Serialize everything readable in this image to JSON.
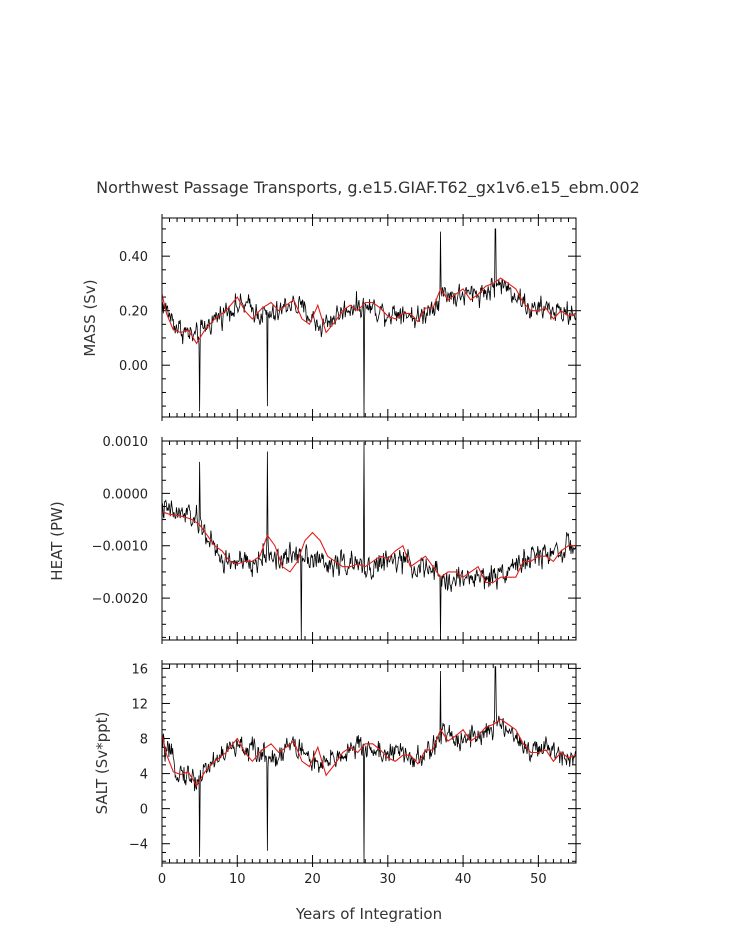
{
  "figure": {
    "title": "Northwest Passage Transports, g.e15.GIAF.T62_gx1v6.e15_ebm.002",
    "xlabel": "Years of Integration"
  },
  "colors": {
    "raw": "#000000",
    "smoothed": "#e0201c",
    "frame": "#000000"
  },
  "chart_data": [
    {
      "type": "line",
      "ylabel": "MASS (Sv)",
      "xlim": [
        0,
        55
      ],
      "ylim": [
        -0.19,
        0.54
      ],
      "yticks": [
        0.0,
        0.2,
        0.4
      ],
      "ytick_labels": [
        "0.00",
        "0.20",
        "0.40"
      ],
      "xticks": [
        0,
        10,
        20,
        30,
        40,
        50
      ],
      "xtick_labels": [
        "0",
        "10",
        "20",
        "30",
        "40",
        "50"
      ],
      "series": [
        {
          "role": "raw",
          "color": "#000000",
          "noise": 0.075,
          "spikes": [
            [
              5.0,
              -0.17
            ],
            [
              14.0,
              -0.15
            ],
            [
              26.8,
              -0.19
            ],
            [
              37.0,
              0.49
            ],
            [
              44.3,
              0.5
            ]
          ],
          "x": [
            0,
            2,
            4.5,
            6.5,
            9,
            11,
            13,
            15,
            17,
            19,
            21,
            23,
            25.5,
            28,
            30,
            32,
            34,
            36,
            37.5,
            39,
            41,
            43,
            45,
            47,
            49,
            51,
            53,
            55
          ],
          "y": [
            0.23,
            0.14,
            0.1,
            0.16,
            0.21,
            0.22,
            0.19,
            0.18,
            0.23,
            0.2,
            0.14,
            0.18,
            0.22,
            0.21,
            0.19,
            0.2,
            0.17,
            0.22,
            0.27,
            0.25,
            0.26,
            0.27,
            0.3,
            0.26,
            0.2,
            0.21,
            0.19,
            0.19
          ]
        },
        {
          "role": "smoothed",
          "color": "#e0201c",
          "x": [
            0,
            0.6,
            1.5,
            2.5,
            3.5,
            4.6,
            5.7,
            7,
            8.5,
            10,
            11,
            12,
            13.3,
            14.5,
            15.5,
            16.5,
            17.5,
            18.6,
            19.6,
            20.7,
            21.8,
            23,
            24,
            25,
            26,
            27,
            28,
            29,
            30,
            31,
            32,
            33,
            34,
            35,
            36,
            37,
            38,
            39,
            40,
            41,
            42,
            43,
            44,
            45,
            46,
            47,
            48,
            49,
            50,
            51,
            52,
            53,
            54,
            55
          ],
          "y": [
            0.26,
            0.19,
            0.13,
            0.12,
            0.13,
            0.08,
            0.13,
            0.17,
            0.2,
            0.25,
            0.2,
            0.17,
            0.21,
            0.23,
            0.2,
            0.22,
            0.24,
            0.17,
            0.15,
            0.22,
            0.12,
            0.16,
            0.2,
            0.22,
            0.2,
            0.23,
            0.23,
            0.21,
            0.18,
            0.17,
            0.19,
            0.19,
            0.16,
            0.21,
            0.21,
            0.28,
            0.24,
            0.26,
            0.28,
            0.24,
            0.26,
            0.29,
            0.3,
            0.32,
            0.3,
            0.28,
            0.23,
            0.2,
            0.2,
            0.21,
            0.17,
            0.2,
            0.18,
            0.19
          ]
        }
      ]
    },
    {
      "type": "line",
      "ylabel": "HEAT (PW)",
      "xlim": [
        0,
        55
      ],
      "ylim": [
        -0.0028,
        0.001
      ],
      "yticks": [
        -0.002,
        -0.001,
        0.0,
        0.001
      ],
      "ytick_labels": [
        "−0.0020",
        "−0.0010",
        "0.0000",
        "0.0010"
      ],
      "xticks": [
        0,
        10,
        20,
        30,
        40,
        50
      ],
      "xtick_labels": [
        "0",
        "10",
        "20",
        "30",
        "40",
        "50"
      ],
      "series": [
        {
          "role": "raw",
          "color": "#000000",
          "noise": 0.00042,
          "spikes": [
            [
              5.0,
              0.0006
            ],
            [
              14.0,
              0.0008
            ],
            [
              26.8,
              0.00098
            ],
            [
              37.0,
              -0.0028
            ],
            [
              18.5,
              -0.0028
            ]
          ],
          "x": [
            0,
            1,
            2,
            3,
            4,
            5,
            6,
            7,
            8,
            9,
            10,
            12,
            14,
            16,
            18,
            20,
            22,
            24,
            26,
            28,
            30,
            32,
            34,
            36,
            38,
            40,
            42,
            44,
            46,
            48,
            50,
            52,
            55
          ],
          "y": [
            -0.0003,
            -0.00035,
            -0.0004,
            -0.0004,
            -0.00045,
            -0.0006,
            -0.0008,
            -0.0011,
            -0.0013,
            -0.0013,
            -0.0013,
            -0.0014,
            -0.0011,
            -0.0013,
            -0.0011,
            -0.0012,
            -0.0014,
            -0.0013,
            -0.0014,
            -0.0014,
            -0.0013,
            -0.0013,
            -0.0014,
            -0.0015,
            -0.0017,
            -0.0016,
            -0.0016,
            -0.0016,
            -0.0014,
            -0.0013,
            -0.0012,
            -0.0011,
            -0.001
          ]
        },
        {
          "role": "smoothed",
          "color": "#e0201c",
          "x": [
            0,
            1,
            2,
            3,
            4,
            5,
            6,
            7,
            8,
            9,
            10,
            11,
            12,
            13,
            14,
            15,
            16,
            17,
            18,
            19,
            20,
            21,
            22,
            23,
            24,
            25,
            26,
            27,
            28,
            29,
            30,
            31,
            32,
            33,
            34,
            35,
            36,
            37,
            38,
            39,
            40,
            41,
            42,
            43,
            44,
            45,
            46,
            47,
            48,
            49,
            50,
            51,
            52,
            53,
            54,
            55
          ],
          "y": [
            -0.00035,
            -0.0004,
            -0.00042,
            -0.00045,
            -0.0005,
            -0.0006,
            -0.0008,
            -0.001,
            -0.0011,
            -0.0013,
            -0.00135,
            -0.0013,
            -0.0013,
            -0.0012,
            -0.0008,
            -0.001,
            -0.0014,
            -0.0015,
            -0.0013,
            -0.0009,
            -0.00075,
            -0.0009,
            -0.0012,
            -0.0013,
            -0.0014,
            -0.0014,
            -0.00135,
            -0.0014,
            -0.0013,
            -0.0012,
            -0.00125,
            -0.0011,
            -0.001,
            -0.0014,
            -0.0013,
            -0.0012,
            -0.0014,
            -0.0016,
            -0.0015,
            -0.0015,
            -0.0016,
            -0.0015,
            -0.0014,
            -0.0017,
            -0.0017,
            -0.0016,
            -0.0016,
            -0.0016,
            -0.0013,
            -0.0013,
            -0.0012,
            -0.0012,
            -0.0013,
            -0.0011,
            -0.001,
            -0.001
          ]
        }
      ]
    },
    {
      "type": "line",
      "ylabel": "SALT (Sv*ppt)",
      "xlim": [
        0,
        55
      ],
      "ylim": [
        -6.2,
        16.5
      ],
      "yticks": [
        -4,
        0,
        4,
        8,
        12,
        16
      ],
      "ytick_labels": [
        "−4",
        "0",
        "4",
        "8",
        "12",
        "16"
      ],
      "xticks": [
        0,
        10,
        20,
        30,
        40,
        50
      ],
      "xtick_labels": [
        "0",
        "10",
        "20",
        "30",
        "40",
        "50"
      ],
      "series": [
        {
          "role": "raw",
          "color": "#000000",
          "noise": 2.4,
          "spikes": [
            [
              5.0,
              -5.5
            ],
            [
              14.0,
              -4.8
            ],
            [
              26.8,
              -6.2
            ],
            [
              37.0,
              15.7
            ],
            [
              44.3,
              16.2
            ]
          ],
          "x": [
            0,
            2,
            4.5,
            6.5,
            9,
            11,
            13,
            15,
            17,
            19,
            21,
            23,
            25.5,
            28,
            30,
            32,
            34,
            36,
            37.5,
            39,
            41,
            43,
            45,
            47,
            49,
            51,
            53,
            55
          ],
          "y": [
            7.4,
            4.5,
            3.2,
            5.2,
            6.8,
            7.0,
            6.2,
            5.8,
            7.4,
            6.4,
            4.5,
            5.8,
            7.0,
            6.8,
            6.2,
            6.4,
            5.4,
            7.0,
            8.6,
            8.0,
            8.3,
            8.6,
            9.6,
            8.3,
            6.4,
            6.8,
            6.2,
            6.2
          ]
        },
        {
          "role": "smoothed",
          "color": "#e0201c",
          "x": [
            0,
            0.6,
            1.5,
            2.5,
            3.5,
            4.6,
            5.7,
            7,
            8.5,
            10,
            11,
            12,
            13.3,
            14.5,
            15.5,
            16.5,
            17.5,
            18.6,
            19.6,
            20.7,
            21.8,
            23,
            24,
            25,
            26,
            27,
            28,
            29,
            30,
            31,
            32,
            33,
            34,
            35,
            36,
            37,
            38,
            39,
            40,
            41,
            42,
            43,
            44,
            45,
            46,
            47,
            48,
            49,
            50,
            51,
            52,
            53,
            54,
            55
          ],
          "y": [
            8.5,
            6.2,
            4.2,
            3.9,
            4.2,
            2.6,
            4.2,
            5.4,
            6.4,
            8.0,
            6.4,
            5.4,
            6.7,
            7.4,
            6.4,
            7.0,
            7.7,
            5.4,
            4.8,
            7.0,
            3.8,
            5.1,
            6.4,
            7.0,
            6.4,
            7.4,
            7.4,
            6.7,
            5.8,
            5.4,
            6.1,
            6.1,
            5.1,
            6.7,
            6.7,
            9.0,
            7.7,
            8.3,
            9.0,
            7.7,
            8.3,
            9.3,
            9.6,
            10.2,
            9.6,
            9.0,
            7.4,
            6.4,
            6.4,
            6.7,
            5.4,
            6.4,
            5.8,
            6.1
          ]
        }
      ]
    }
  ]
}
